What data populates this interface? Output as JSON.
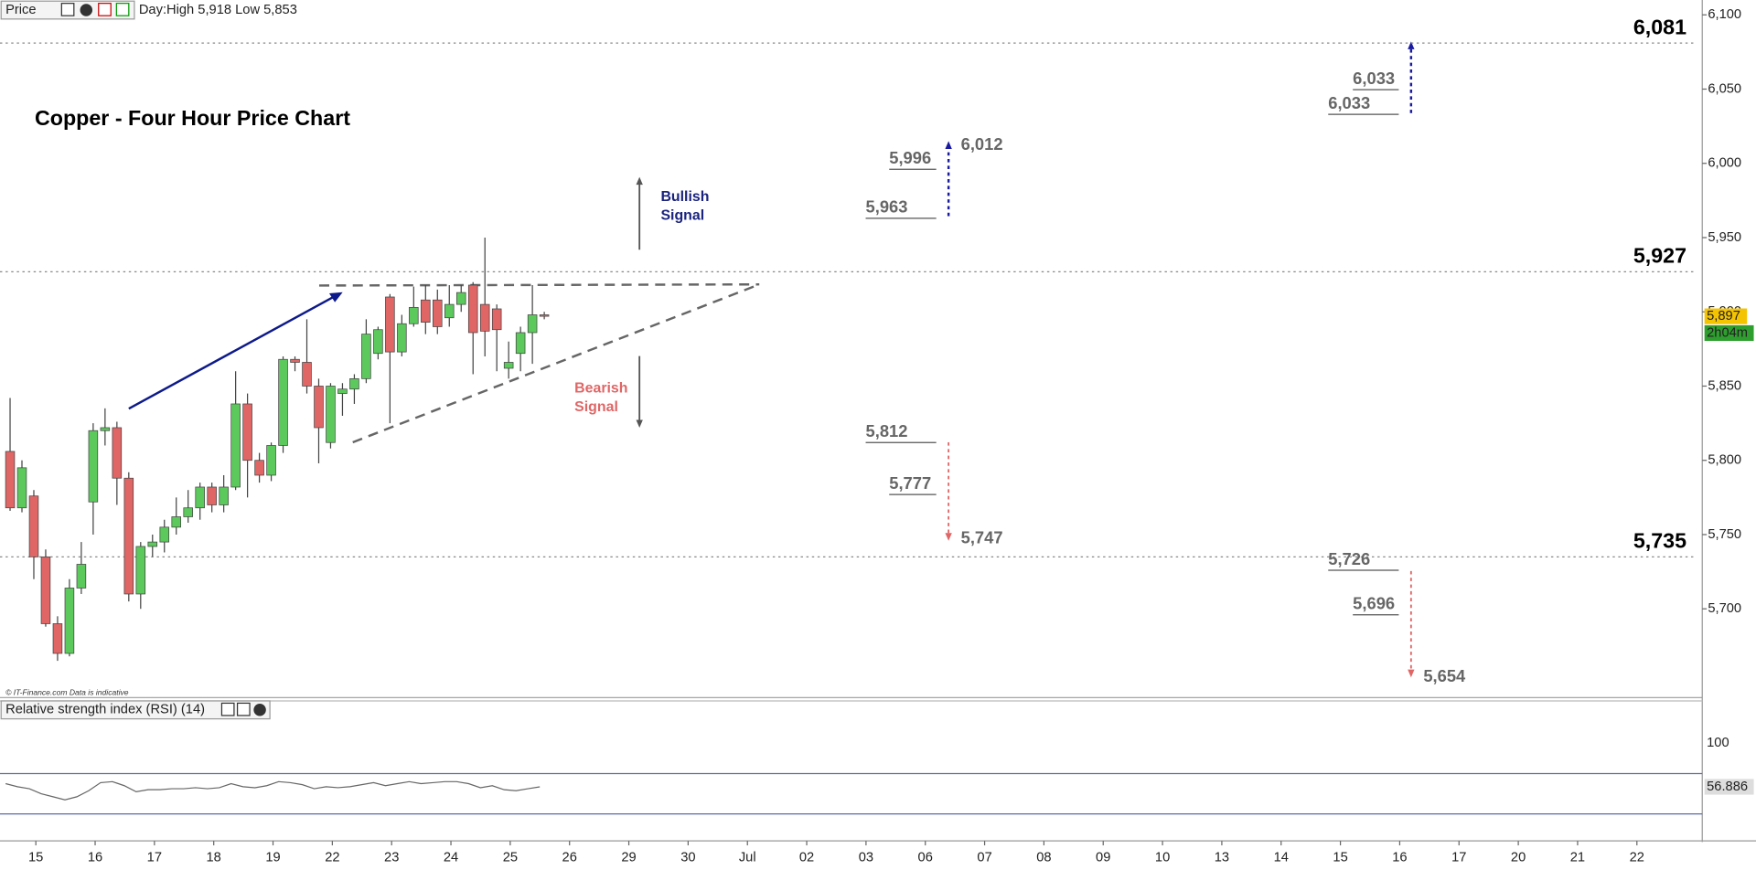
{
  "chart_data": {
    "type": "candlestick",
    "title": "Copper - Four Hour Price Chart",
    "panel_label": "Price",
    "day_info": "Day:High 5,918 Low 5,853",
    "source_note": "© IT-Finance.com Data is indicative",
    "up_color": "#5cc95c",
    "down_color": "#e06666",
    "candles": {
      "open": [
        5806,
        5768,
        5776,
        5735,
        5690,
        5670,
        5714,
        5772,
        5820,
        5822,
        5788,
        5710,
        5742,
        5745,
        5755,
        5762,
        5768,
        5782,
        5770,
        5782,
        5838,
        5800,
        5790,
        5810,
        5868,
        5866,
        5850,
        5812,
        5845,
        5848,
        5855,
        5872,
        5910,
        5873,
        5892,
        5908,
        5908,
        5896,
        5905,
        5918,
        5905,
        5902,
        5862,
        5872,
        5886,
        5898
      ],
      "high": [
        5842,
        5800,
        5780,
        5740,
        5695,
        5720,
        5745,
        5825,
        5835,
        5826,
        5792,
        5745,
        5750,
        5760,
        5775,
        5780,
        5785,
        5785,
        5790,
        5860,
        5845,
        5805,
        5812,
        5870,
        5870,
        5895,
        5855,
        5852,
        5852,
        5858,
        5895,
        5890,
        5912,
        5898,
        5917,
        5918,
        5915,
        5918,
        5918,
        5920,
        5950,
        5905,
        5880,
        5890,
        5918,
        5900
      ],
      "low": [
        5766,
        5765,
        5720,
        5688,
        5665,
        5668,
        5710,
        5750,
        5810,
        5770,
        5705,
        5700,
        5735,
        5738,
        5750,
        5758,
        5760,
        5765,
        5765,
        5780,
        5775,
        5785,
        5786,
        5805,
        5860,
        5845,
        5798,
        5808,
        5830,
        5838,
        5852,
        5868,
        5825,
        5870,
        5890,
        5885,
        5885,
        5890,
        5900,
        5858,
        5870,
        5860,
        5855,
        5860,
        5865,
        5895
      ],
      "close": [
        5768,
        5795,
        5735,
        5690,
        5670,
        5714,
        5730,
        5820,
        5822,
        5788,
        5710,
        5742,
        5745,
        5755,
        5762,
        5768,
        5782,
        5770,
        5782,
        5838,
        5800,
        5790,
        5810,
        5868,
        5866,
        5850,
        5822,
        5850,
        5848,
        5855,
        5885,
        5888,
        5873,
        5892,
        5903,
        5893,
        5890,
        5905,
        5913,
        5886,
        5887,
        5888,
        5866,
        5886,
        5898,
        5897
      ]
    },
    "ylim": [
      5641,
      6110
    ],
    "yticks": [
      {
        "value": 5700,
        "label": "5,700"
      },
      {
        "value": 5750,
        "label": "5,750"
      },
      {
        "value": 5800,
        "label": "5,800"
      },
      {
        "value": 5850,
        "label": "5,850"
      },
      {
        "value": 5900,
        "label": "5,900"
      },
      {
        "value": 5950,
        "label": "5,950"
      },
      {
        "value": 6000,
        "label": "6,000"
      },
      {
        "value": 6050,
        "label": "6,050"
      },
      {
        "value": 6100,
        "label": "6,100"
      }
    ],
    "xticks": [
      "15",
      "16",
      "17",
      "18",
      "19",
      "22",
      "23",
      "24",
      "25",
      "26",
      "29",
      "30",
      "Jul",
      "02",
      "03",
      "06",
      "07",
      "08",
      "09",
      "10",
      "13",
      "14",
      "15",
      "16",
      "17",
      "20",
      "21",
      "22"
    ],
    "levels": [
      {
        "value": 6081,
        "label": "6,081"
      },
      {
        "value": 5927,
        "label": "5,927"
      },
      {
        "value": 5735,
        "label": "5,735"
      }
    ],
    "targets": [
      {
        "value": 6033,
        "label": "6,033"
      },
      {
        "value": 6033,
        "label": "6,033"
      },
      {
        "value": 6012,
        "label": "6,012"
      },
      {
        "value": 5996,
        "label": "5,996"
      },
      {
        "value": 5963,
        "label": "5,963"
      },
      {
        "value": 5812,
        "label": "5,812"
      },
      {
        "value": 5777,
        "label": "5,777"
      },
      {
        "value": 5747,
        "label": "5,747"
      },
      {
        "value": 5726,
        "label": "5,726"
      },
      {
        "value": 5696,
        "label": "5,696"
      },
      {
        "value": 5654,
        "label": "5,654"
      }
    ],
    "bullish_signal": [
      "Bullish",
      "Signal"
    ],
    "bearish_signal": [
      "Bearish",
      "Signal"
    ],
    "current_price": {
      "value": 5897,
      "label": "5,897"
    },
    "countdown": "2h04m",
    "rsi": {
      "title": "Relative strength index (RSI) (14)",
      "ylim": [
        4.4,
        142
      ],
      "yticks": [
        100
      ],
      "bands": [
        70,
        30
      ],
      "values": [
        60,
        57,
        55,
        50,
        47,
        44,
        47,
        53,
        61,
        62,
        58,
        52,
        54,
        54,
        55,
        55,
        56,
        55,
        56,
        60,
        57,
        56,
        58,
        62,
        61,
        59,
        55,
        57,
        56,
        57,
        59,
        61,
        58,
        60,
        62,
        60,
        61,
        62,
        62,
        60,
        56,
        58,
        54,
        53,
        55,
        56.886
      ]
    }
  }
}
